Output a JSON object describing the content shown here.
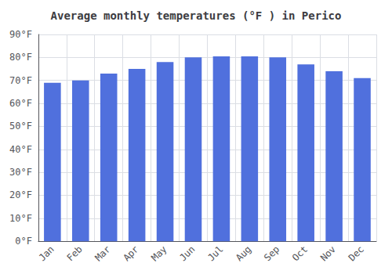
{
  "chart_data": {
    "type": "bar",
    "title": "Average monthly temperatures (°F ) in Perico",
    "categories": [
      "Jan",
      "Feb",
      "Mar",
      "Apr",
      "May",
      "Jun",
      "Jul",
      "Aug",
      "Sep",
      "Oct",
      "Nov",
      "Dec"
    ],
    "values": [
      69,
      70,
      73,
      75,
      78,
      80,
      80.5,
      80.5,
      80,
      77,
      74,
      71
    ],
    "ylim": [
      0,
      90
    ],
    "yticks": [
      {
        "value": 0,
        "label": "0°F"
      },
      {
        "value": 10,
        "label": "10°F"
      },
      {
        "value": 20,
        "label": "20°F"
      },
      {
        "value": 30,
        "label": "30°F"
      },
      {
        "value": 40,
        "label": "40°F"
      },
      {
        "value": 50,
        "label": "50°F"
      },
      {
        "value": 60,
        "label": "60°F"
      },
      {
        "value": 70,
        "label": "70°F"
      },
      {
        "value": 80,
        "label": "80°F"
      },
      {
        "value": 90,
        "label": "90°F"
      }
    ],
    "grid": true
  }
}
